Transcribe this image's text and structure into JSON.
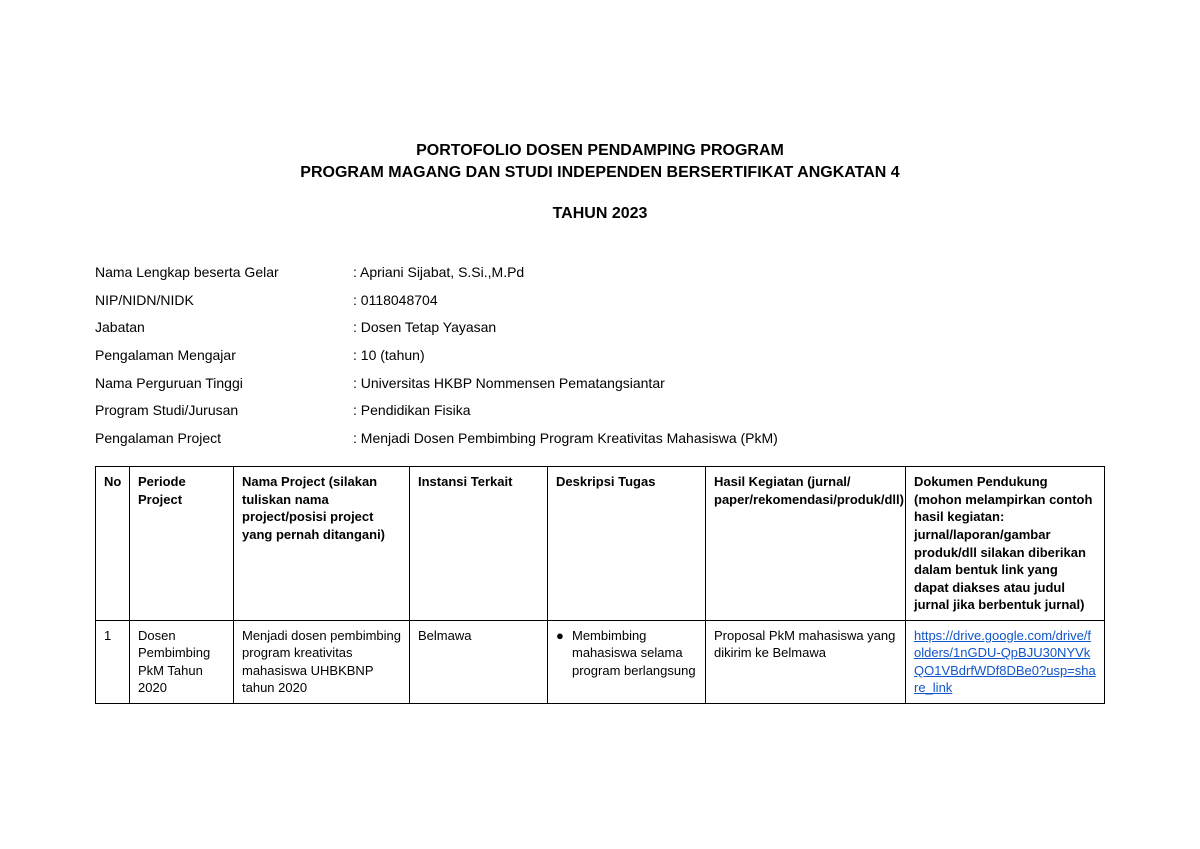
{
  "title": {
    "line1": "PORTOFOLIO DOSEN PENDAMPING PROGRAM",
    "line2": "PROGRAM MAGANG DAN STUDI INDEPENDEN BERSERTIFIKAT ANGKATAN 4",
    "year": "TAHUN 2023"
  },
  "info": {
    "rows": [
      {
        "label": "Nama Lengkap beserta Gelar",
        "value": "Apriani Sijabat, S.Si.,M.Pd"
      },
      {
        "label": "NIP/NIDN/NIDK",
        "value": "0118048704"
      },
      {
        "label": "Jabatan",
        "value": "Dosen Tetap Yayasan"
      },
      {
        "label": "Pengalaman Mengajar",
        "value": " 10 (tahun)"
      },
      {
        "label": "Nama Perguruan Tinggi",
        "value": "Universitas HKBP Nommensen Pematangsiantar"
      },
      {
        "label": "Program Studi/Jurusan",
        "value": "Pendidikan Fisika"
      },
      {
        "label": "Pengalaman Project",
        "value": "Menjadi Dosen Pembimbing Program Kreativitas Mahasiswa (PkM)"
      }
    ]
  },
  "table": {
    "headers": {
      "no": "No",
      "periode": "Periode Project",
      "nama": "Nama Project (silakan tuliskan nama project/posisi project yang pernah ditangani)",
      "instansi": "Instansi Terkait",
      "deskripsi": "Deskripsi Tugas",
      "hasil": "Hasil Kegiatan (jurnal/ paper/rekomendasi/produk/dll)",
      "dokumen": "Dokumen Pendukung (mohon melampirkan contoh hasil kegiatan: jurnal/laporan/gambar produk/dll silakan diberikan dalam bentuk link yang dapat diakses atau judul jurnal jika berbentuk jurnal)"
    },
    "row": {
      "no": "1",
      "periode": "Dosen Pembimbing PkM Tahun 2020",
      "nama": "Menjadi dosen pembimbing program kreativitas mahasiswa UHBKBNP tahun 2020",
      "instansi": "Belmawa",
      "deskripsi_bullet": "Membimbing mahasiswa selama program berlangsung",
      "hasil": "Proposal PkM mahasiswa yang dikirim ke Belmawa",
      "dokumen_link": "https://drive.google.com/drive/folders/1nGDU-QpBJU30NYVkQO1VBdrfWDf8DBe0?usp=share_link"
    }
  },
  "style": {
    "link_color": "#1155cc",
    "text_color": "#000000",
    "background": "#ffffff",
    "border_color": "#000000"
  }
}
